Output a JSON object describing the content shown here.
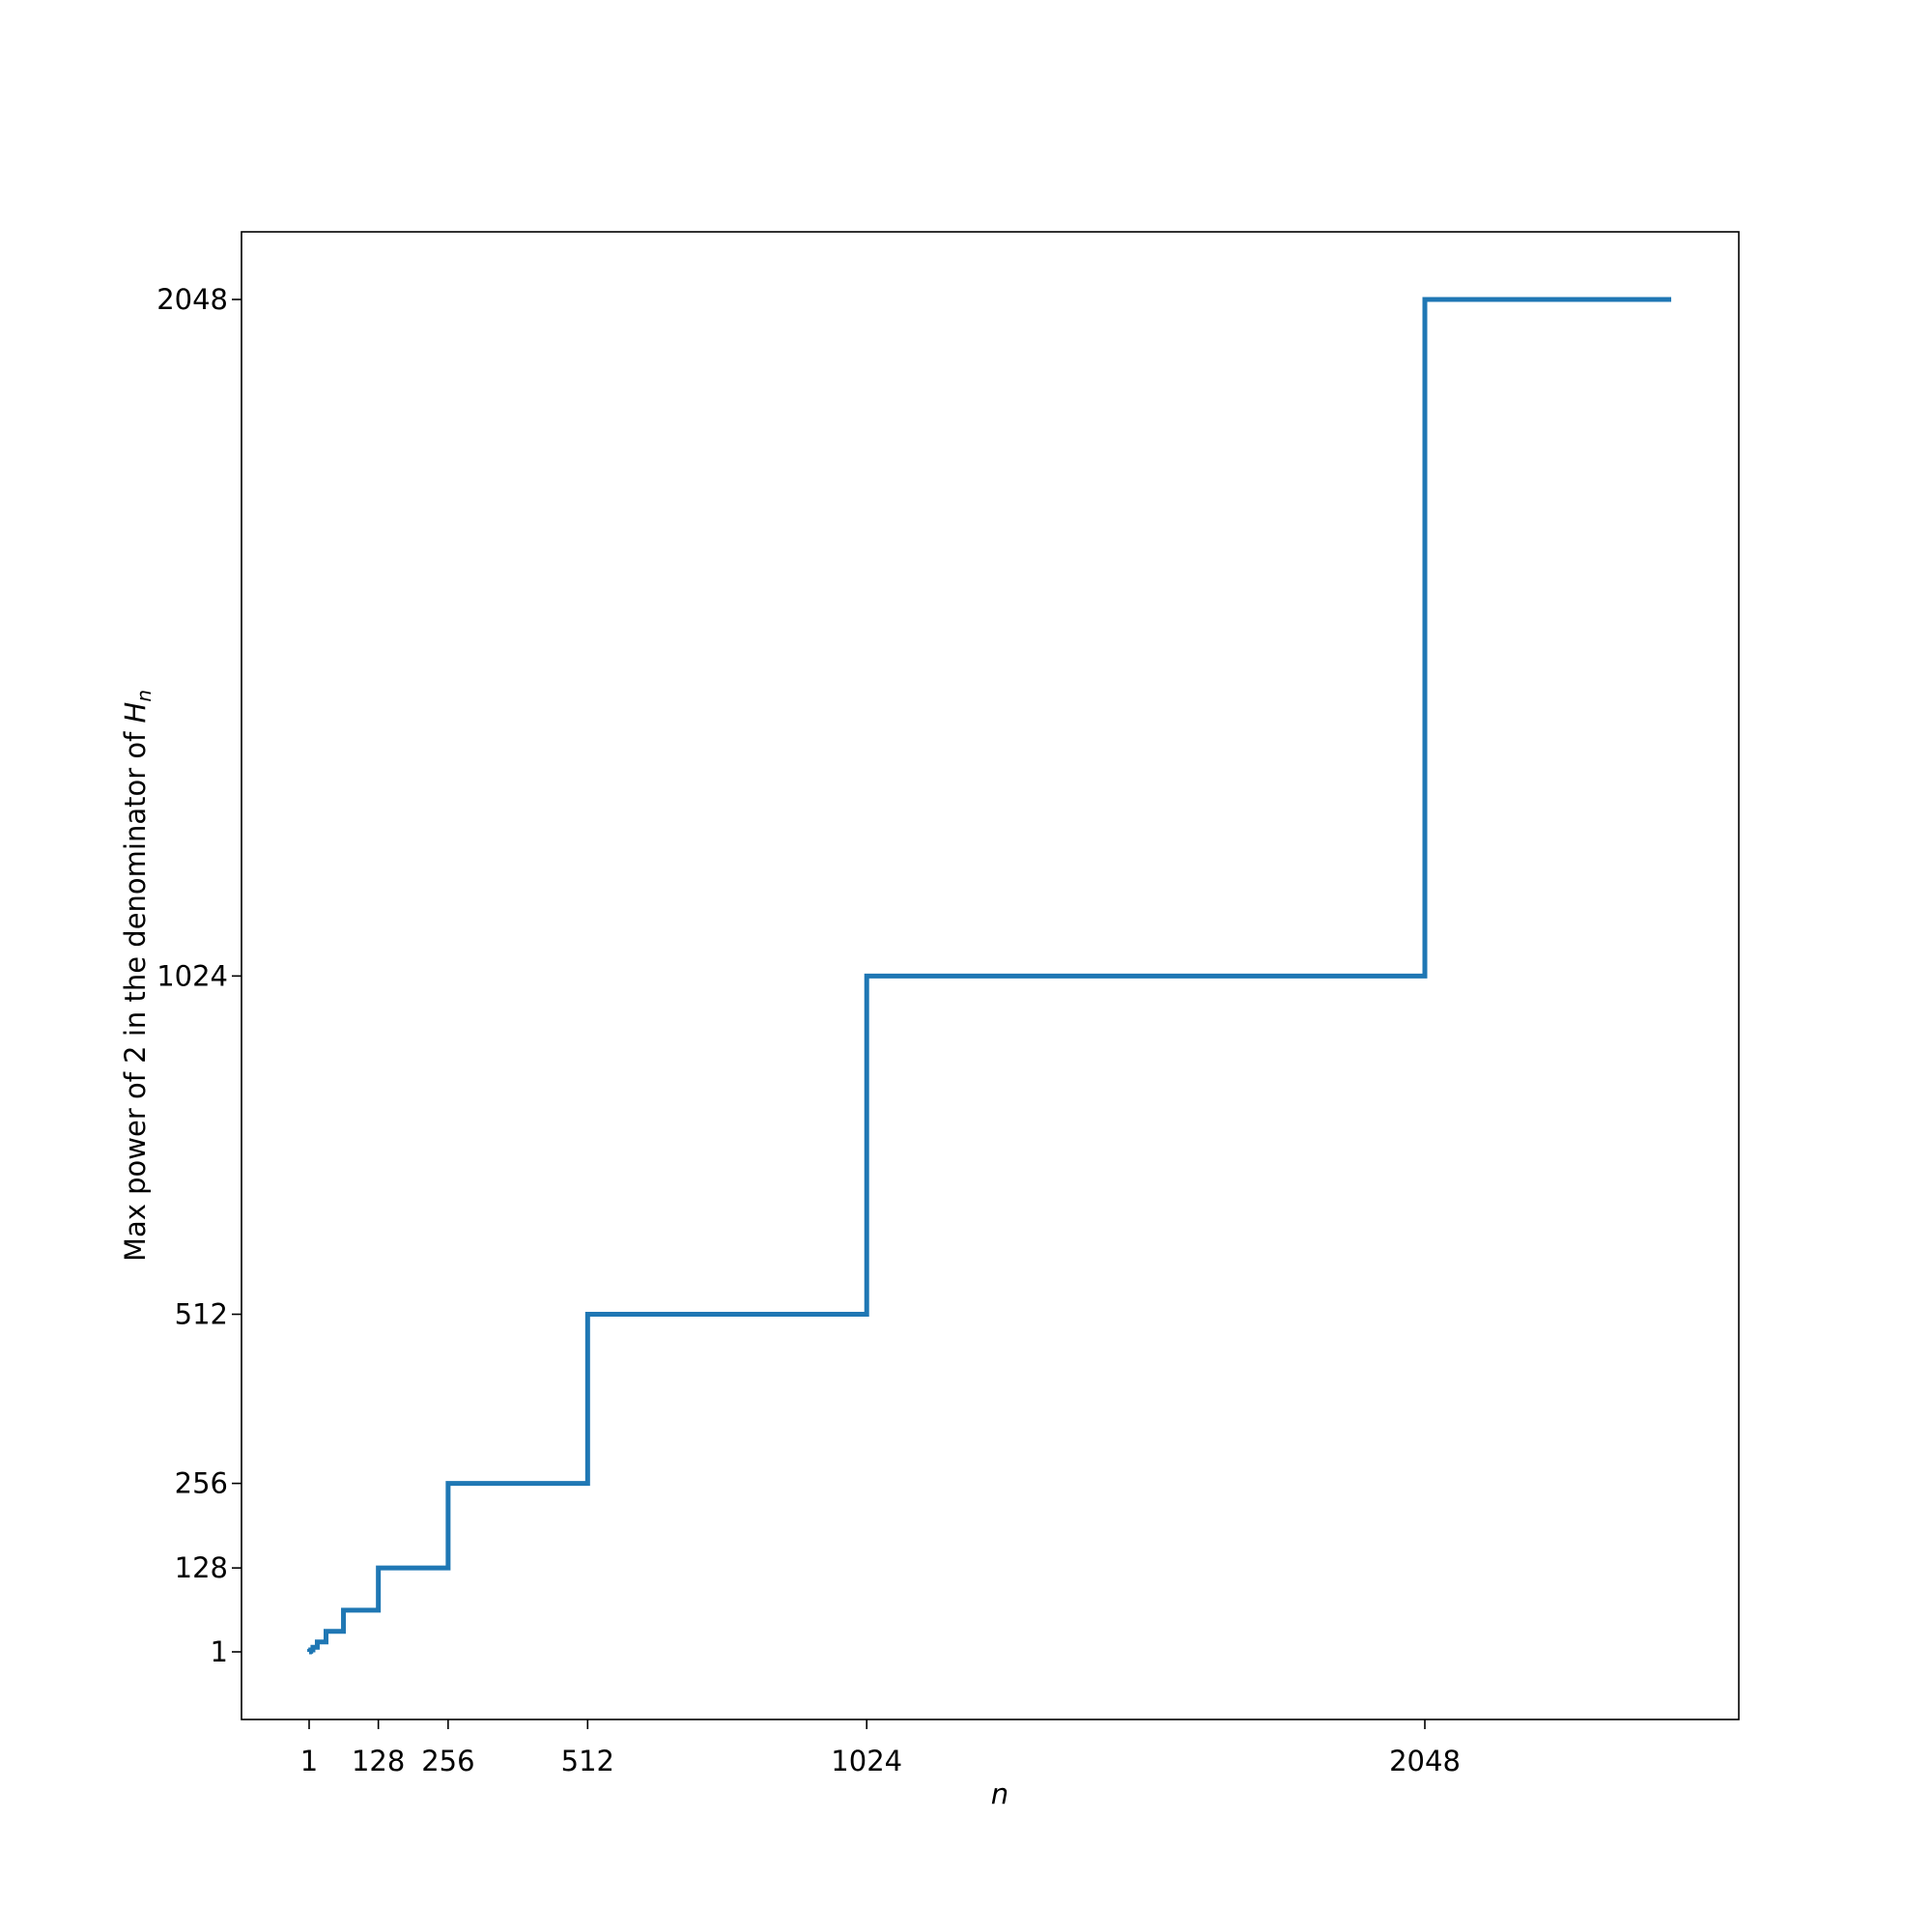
{
  "chart_data": {
    "type": "line",
    "drawstyle": "steps-post",
    "title": "",
    "xlabel": "n",
    "ylabel": "Max power of 2 in the denominator of H_n",
    "ylabel_text": "Max power of 2 in the denominator of ",
    "ylabel_math": "H",
    "ylabel_sub": "n",
    "xlim": [
      -99,
      2700
    ],
    "ylim": [
      -96,
      2153
    ],
    "grid": false,
    "legend": null,
    "xticks": [
      1,
      128,
      256,
      512,
      1024,
      2048
    ],
    "xtick_labels": [
      "1",
      "128",
      "256",
      "512",
      "1024",
      "2048"
    ],
    "yticks": [
      1,
      128,
      256,
      512,
      1024,
      2048
    ],
    "ytick_labels": [
      "1",
      "128",
      "256",
      "512",
      "1024",
      "2048"
    ],
    "series": [
      {
        "name": "max power of 2",
        "color": "#1f77b4",
        "x": [
          1,
          2,
          4,
          8,
          16,
          32,
          64,
          128,
          256,
          512,
          1024,
          2048,
          2500
        ],
        "values": [
          1,
          2,
          4,
          8,
          16,
          32,
          64,
          128,
          256,
          512,
          1024,
          2048,
          2048
        ]
      }
    ]
  }
}
